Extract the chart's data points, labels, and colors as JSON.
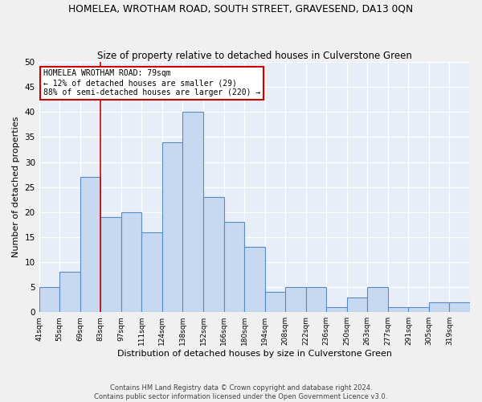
{
  "title": "HOMELEA, WROTHAM ROAD, SOUTH STREET, GRAVESEND, DA13 0QN",
  "subtitle": "Size of property relative to detached houses in Culverstone Green",
  "xlabel": "Distribution of detached houses by size in Culverstone Green",
  "ylabel": "Number of detached properties",
  "footer_line1": "Contains HM Land Registry data © Crown copyright and database right 2024.",
  "footer_line2": "Contains public sector information licensed under the Open Government Licence v3.0.",
  "bin_labels": [
    "41sqm",
    "55sqm",
    "69sqm",
    "83sqm",
    "97sqm",
    "111sqm",
    "124sqm",
    "138sqm",
    "152sqm",
    "166sqm",
    "180sqm",
    "194sqm",
    "208sqm",
    "222sqm",
    "236sqm",
    "250sqm",
    "263sqm",
    "277sqm",
    "291sqm",
    "305sqm",
    "319sqm"
  ],
  "bar_values": [
    5,
    8,
    27,
    19,
    20,
    16,
    34,
    40,
    23,
    18,
    13,
    4,
    5,
    5,
    1,
    3,
    5,
    1,
    1,
    2,
    2
  ],
  "bar_color": "#c6d9f0",
  "bar_edge_color": "#5a8ac6",
  "background_color": "#e8eef8",
  "grid_color": "#ffffff",
  "annotation_text": "HOMELEA WROTHAM ROAD: 79sqm\n← 12% of detached houses are smaller (29)\n88% of semi-detached houses are larger (220) →",
  "annotation_box_color": "#ffffff",
  "annotation_box_edge_color": "#cc0000",
  "vline_color": "#cc0000",
  "ylim": [
    0,
    50
  ],
  "yticks": [
    0,
    5,
    10,
    15,
    20,
    25,
    30,
    35,
    40,
    45,
    50
  ],
  "vline_bar_index": 3,
  "fig_width": 6.0,
  "fig_height": 5.0,
  "dpi": 100
}
